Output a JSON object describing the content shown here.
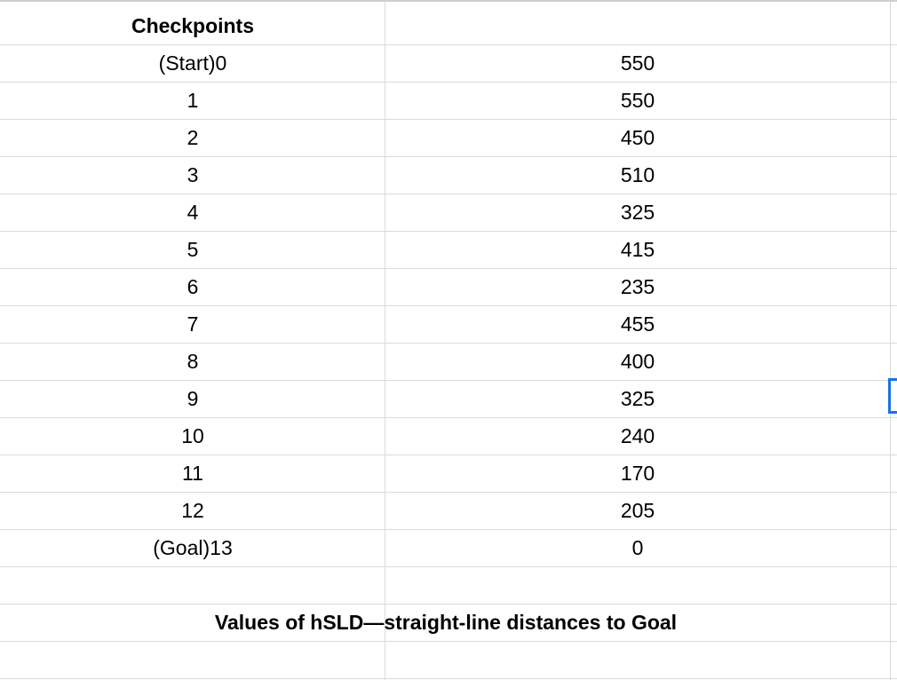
{
  "table": {
    "header": "Checkpoints",
    "rows": [
      {
        "checkpoint": "(Start)0",
        "value": "550"
      },
      {
        "checkpoint": "1",
        "value": "550"
      },
      {
        "checkpoint": "2",
        "value": "450"
      },
      {
        "checkpoint": "3",
        "value": "510"
      },
      {
        "checkpoint": "4",
        "value": "325"
      },
      {
        "checkpoint": "5",
        "value": "415"
      },
      {
        "checkpoint": "6",
        "value": "235"
      },
      {
        "checkpoint": "7",
        "value": "455"
      },
      {
        "checkpoint": "8",
        "value": "400"
      },
      {
        "checkpoint": "9",
        "value": "325"
      },
      {
        "checkpoint": "10",
        "value": "240"
      },
      {
        "checkpoint": "11",
        "value": "170"
      },
      {
        "checkpoint": "12",
        "value": "205"
      },
      {
        "checkpoint": "(Goal)13",
        "value": "0"
      }
    ]
  },
  "caption": "Values of hSLD—straight-line distances to Goal",
  "colors": {
    "gridline": "#dadada",
    "selection": "#1a73e8"
  }
}
